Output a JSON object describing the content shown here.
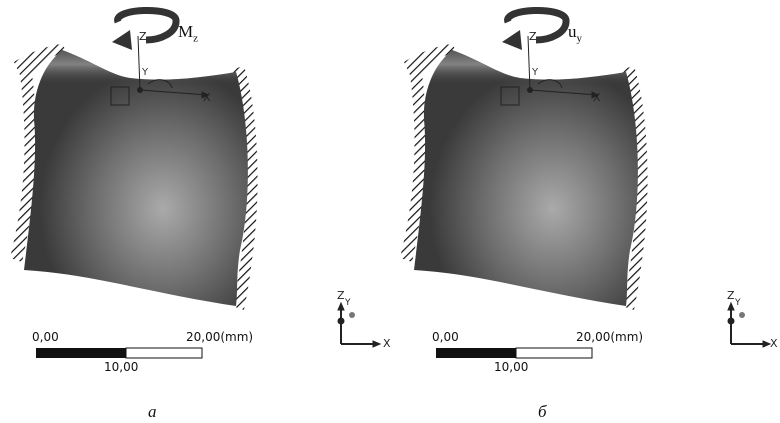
{
  "panels": [
    {
      "load_symbol": "M",
      "load_subscript": "z",
      "caption": "а",
      "scale": {
        "left": "0,00",
        "right": "20,00",
        "unit": "(mm)",
        "middle": "10,00"
      },
      "triad": {
        "z": "Z",
        "y": "Y",
        "x": "X"
      }
    },
    {
      "load_symbol": "u",
      "load_subscript": "y",
      "caption": "б",
      "scale": {
        "left": "0,00",
        "right": "20,00",
        "unit": "(mm)",
        "middle": "10,00"
      },
      "triad": {
        "z": "Z",
        "y": "Y",
        "x": "X"
      }
    }
  ],
  "colors": {
    "part_dark": "#3c3c3c",
    "part_light": "#a9a9a9",
    "hatch": "#111111",
    "arrow": "#4a4a4a"
  }
}
